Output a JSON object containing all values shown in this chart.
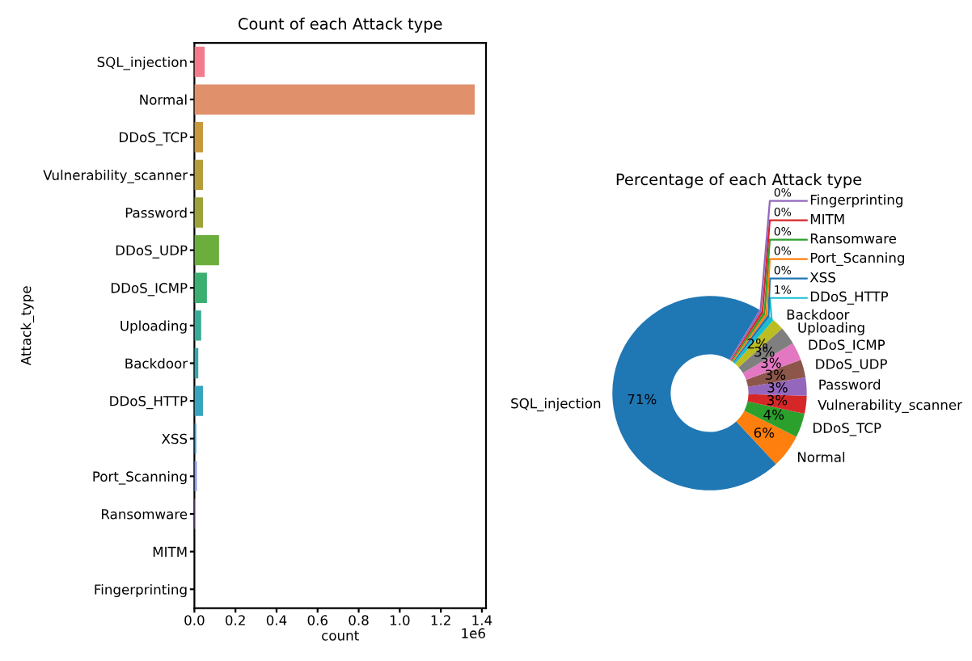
{
  "chart_data": [
    {
      "type": "bar",
      "orientation": "horizontal",
      "title": "Count of each Attack type",
      "xlabel": "count",
      "ylabel": "Attack_type",
      "categories": [
        "SQL_injection",
        "Normal",
        "DDoS_TCP",
        "Vulnerability_scanner",
        "Password",
        "DDoS_UDP",
        "DDoS_ICMP",
        "Uploading",
        "Backdoor",
        "DDoS_HTTP",
        "XSS",
        "Port_Scanning",
        "Ransomware",
        "MITM",
        "Fingerprinting"
      ],
      "values": [
        0.05,
        1.365,
        0.042,
        0.042,
        0.042,
        0.12,
        0.061,
        0.033,
        0.019,
        0.042,
        0.009,
        0.012,
        0.005,
        null,
        null
      ],
      "colors": [
        "#f37b8c",
        "#e0906b",
        "#c8983d",
        "#b49e3b",
        "#9da33a",
        "#6cae3e",
        "#3bae72",
        "#38aa95",
        "#36a7aa",
        "#39a4bd",
        "#3ca0d8",
        "#8f9af0",
        "#c38ef0",
        "#e57ee3",
        "#f476b4"
      ],
      "xlim": [
        0,
        1.42
      ],
      "xticks": [
        {
          "value": 0,
          "label": "0.0"
        },
        {
          "value": 0.2,
          "label": "0.2"
        },
        {
          "value": 0.4,
          "label": "0.4"
        },
        {
          "value": 0.6,
          "label": "0.6"
        },
        {
          "value": 0.8,
          "label": "0.8"
        },
        {
          "value": 1.0,
          "label": "1.0"
        },
        {
          "value": 1.2,
          "label": "1.2"
        },
        {
          "value": 1.4,
          "label": "1.4"
        }
      ],
      "annotations": [
        "1e6"
      ],
      "grid": false,
      "legend": false
    },
    {
      "type": "donut",
      "title": "Percentage of each Attack type",
      "categories": [
        "SQL_injection",
        "Normal",
        "DDoS_TCP",
        "Vulnerability_scanner",
        "Password",
        "DDoS_UDP",
        "DDoS_ICMP",
        "Uploading",
        "Backdoor",
        "DDoS_HTTP",
        "XSS",
        "Port_Scanning",
        "Ransomware",
        "MITM",
        "Fingerprinting"
      ],
      "values": [
        70.6,
        5.6,
        4,
        3,
        3,
        3,
        3,
        3,
        2,
        0.8,
        0.45,
        0.4,
        0.4,
        0.4,
        0.35
      ],
      "value_labels": [
        "71%",
        "6%",
        "4%",
        "3%",
        "3%",
        "3%",
        "3%",
        "3%",
        "2%",
        "1%",
        "0%",
        "0%",
        "0%",
        "0%",
        "0%"
      ],
      "colors": [
        "#1f77b4",
        "#ff7f0e",
        "#2ca02c",
        "#d62728",
        "#9467bd",
        "#8c564b",
        "#e377c2",
        "#7f7f7f",
        "#bcbd22",
        "#17becf",
        "#1f77b4",
        "#ff7f0e",
        "#2ca02c",
        "#d62728",
        "#9467bd"
      ],
      "legend": false
    }
  ]
}
